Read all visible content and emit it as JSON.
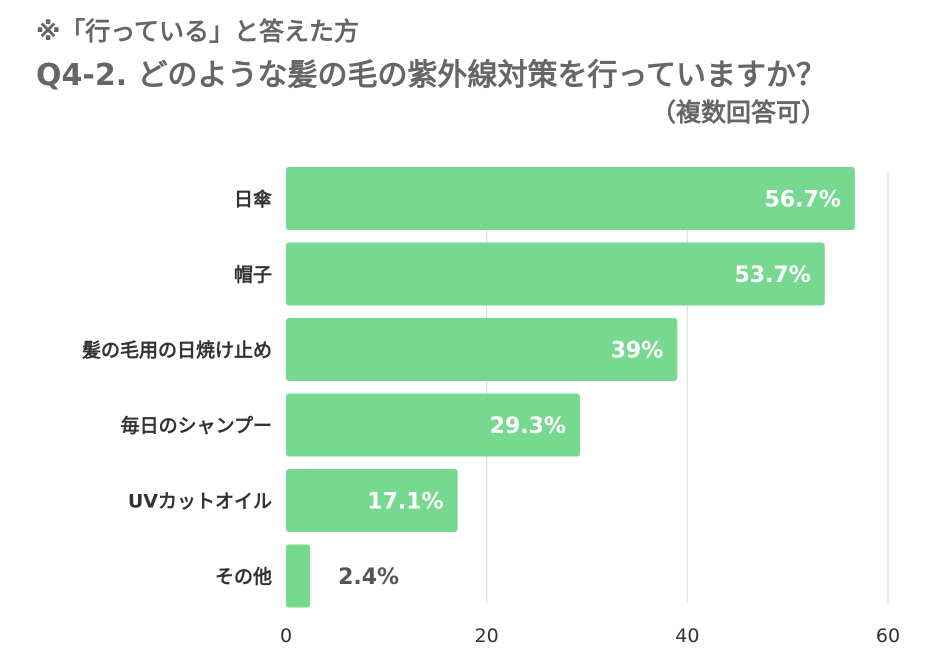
{
  "chart_data": {
    "type": "bar",
    "orientation": "horizontal",
    "subtitle": "※「行っている」と答えた方",
    "title": "Q4-2. どのような髪の毛の紫外線対策を行っていますか？",
    "note": "（複数回答可）",
    "categories": [
      "日傘",
      "帽子",
      "髪の毛用の日焼け止め",
      "毎日のシャンプー",
      "UVカットオイル",
      "その他"
    ],
    "values": [
      56.7,
      53.7,
      39,
      29.3,
      17.1,
      2.4
    ],
    "value_labels": [
      "56.7%",
      "53.7%",
      "39%",
      "29.3%",
      "17.1%",
      "2.4%"
    ],
    "xlim": [
      0,
      60
    ],
    "xticks": [
      0,
      20,
      40,
      60
    ],
    "grid": true,
    "bar_color": "#77d98f",
    "gridline_color": "#d9d9d9"
  }
}
